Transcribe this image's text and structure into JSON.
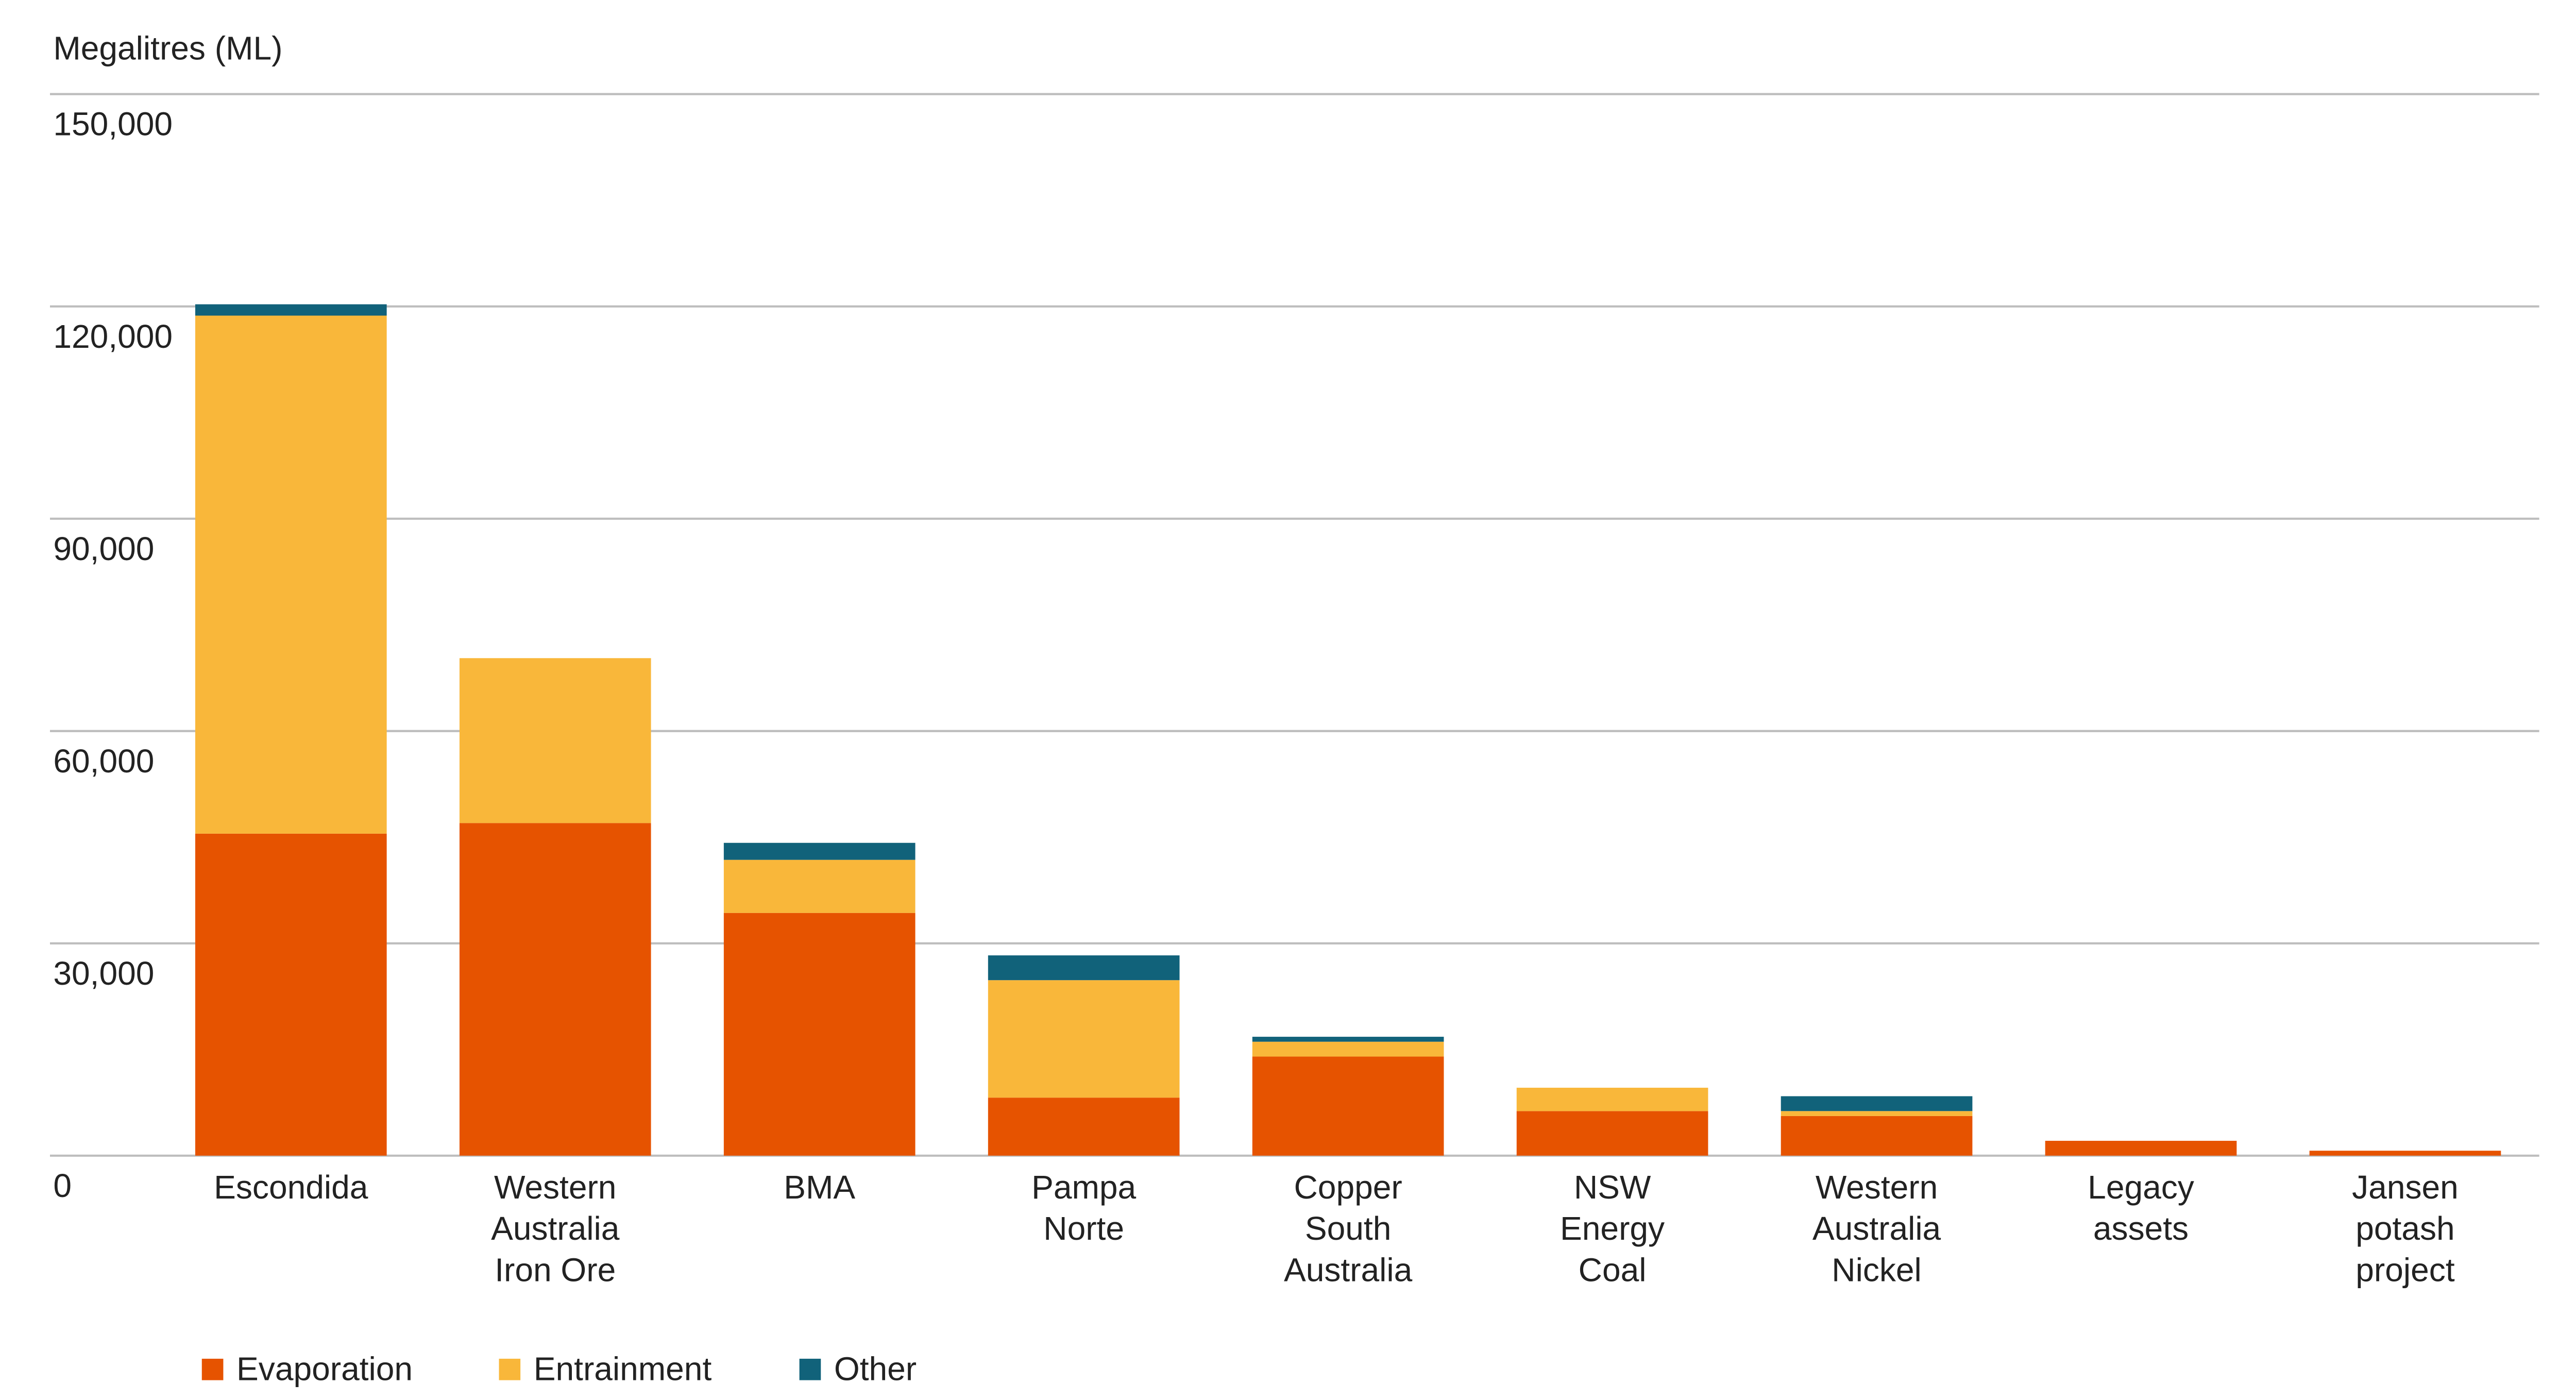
{
  "chart_data": {
    "type": "bar",
    "stacked": true,
    "title": "",
    "ylabel": "Megalitres (ML)",
    "xlabel": "",
    "ylim": [
      0,
      150000
    ],
    "yticks": [
      0,
      30000,
      60000,
      90000,
      120000,
      150000
    ],
    "ytick_labels": [
      "0",
      "30,000",
      "60,000",
      "90,000",
      "120,000",
      "150,000"
    ],
    "grid": true,
    "legend_position": "bottom-left",
    "categories": [
      [
        "Escondida"
      ],
      [
        "Western",
        "Australia",
        "Iron Ore"
      ],
      [
        "BMA"
      ],
      [
        "Pampa",
        "Norte"
      ],
      [
        "Copper",
        "South",
        "Australia"
      ],
      [
        "NSW",
        "Energy",
        "Coal"
      ],
      [
        "Western",
        "Australia",
        "Nickel"
      ],
      [
        "Legacy",
        "assets"
      ],
      [
        "Jansen",
        "potash",
        "project"
      ]
    ],
    "series": [
      {
        "name": "Evaporation",
        "color": "#E65300",
        "values": [
          45500,
          47000,
          34300,
          8200,
          14000,
          6300,
          5600,
          2100,
          700
        ]
      },
      {
        "name": "Entrainment",
        "color": "#F9B73A",
        "values": [
          73200,
          23300,
          7500,
          16600,
          2100,
          3300,
          700,
          0,
          0
        ]
      },
      {
        "name": "Other",
        "color": "#11627A",
        "values": [
          1600,
          0,
          2400,
          3500,
          700,
          0,
          2100,
          0,
          0
        ]
      }
    ]
  }
}
